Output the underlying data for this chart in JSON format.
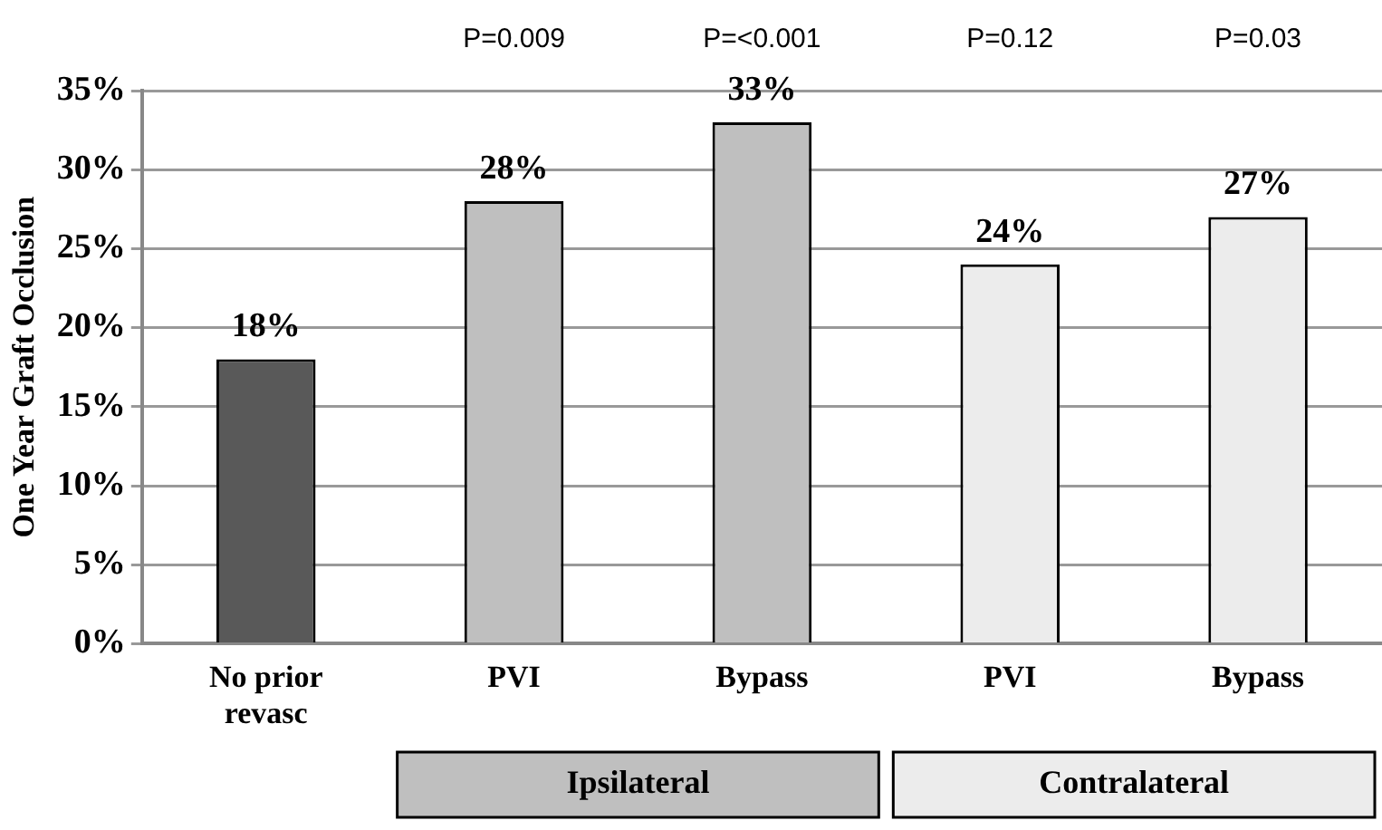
{
  "chart_data": {
    "type": "bar",
    "ylabel": "One Year Graft Occlusion",
    "categories": [
      "No prior revasc",
      "PVI",
      "Bypass",
      "PVI",
      "Bypass"
    ],
    "values": [
      18,
      28,
      33,
      24,
      27
    ],
    "value_labels": [
      "18%",
      "28%",
      "33%",
      "24%",
      "27%"
    ],
    "colors": [
      "#595959",
      "#bfbfbf",
      "#bfbfbf",
      "#ececec",
      "#ececec"
    ],
    "ylim": [
      0,
      35
    ],
    "yticks": [
      {
        "value": 0,
        "label": "0%"
      },
      {
        "value": 5,
        "label": "5%"
      },
      {
        "value": 10,
        "label": "10%"
      },
      {
        "value": 15,
        "label": "15%"
      },
      {
        "value": 20,
        "label": "20%"
      },
      {
        "value": 25,
        "label": "25%"
      },
      {
        "value": 30,
        "label": "30%"
      },
      {
        "value": 35,
        "label": "35%"
      }
    ],
    "grid": "y",
    "legend": false,
    "annotations": [
      "P=0.009",
      "P=<0.001",
      "P=0.12",
      "P=0.03",
      "Ipsilateral",
      "Contralateral"
    ]
  }
}
